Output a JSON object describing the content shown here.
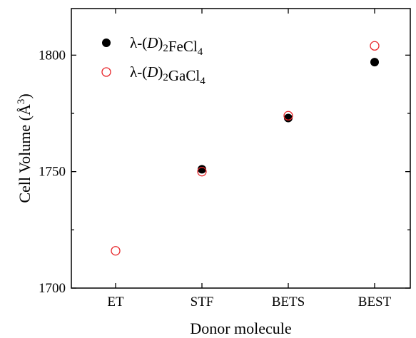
{
  "chart_data": {
    "type": "scatter",
    "categories": [
      "ET",
      "STF",
      "BETS",
      "BEST"
    ],
    "xlabel": "Donor molecule",
    "ylabel": "Cell Volume (Å3)",
    "ylim": [
      1700,
      1820
    ],
    "yticks": [
      1700,
      1750,
      1800
    ],
    "grid": false,
    "legend": "top-left",
    "series": [
      {
        "name": "λ-(D)2FeCl4",
        "marker": "filled-circle",
        "color": "#000000",
        "values": [
          null,
          1751,
          1773,
          1797
        ]
      },
      {
        "name": "λ-(D)2GaCl4",
        "marker": "open-circle",
        "color": "#e8262a",
        "values": [
          1716,
          1750,
          1774,
          1804
        ]
      }
    ]
  }
}
